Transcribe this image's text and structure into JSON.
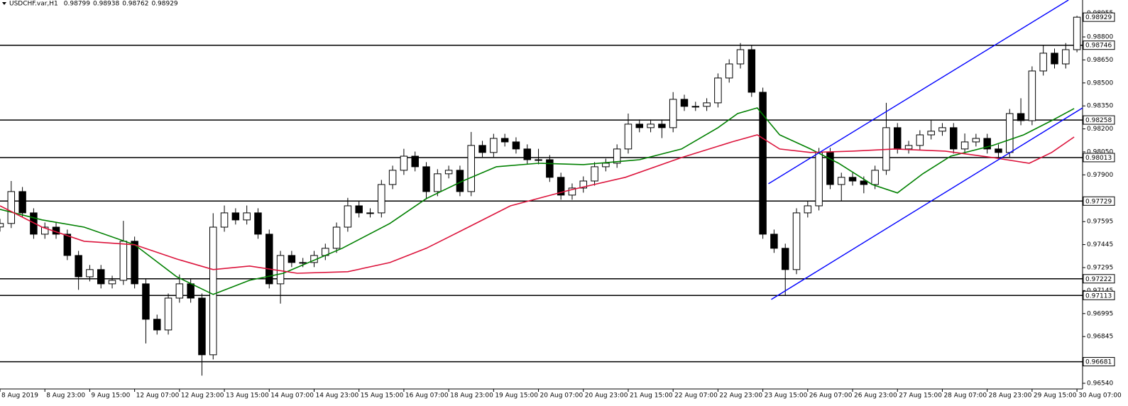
{
  "chart_data": {
    "type": "candlestick",
    "title": "USDCHF.var,H1",
    "header_ohlc": [
      0.98799,
      0.98938,
      0.98762,
      0.98929
    ],
    "xlim": [
      0,
      386
    ],
    "ylim": [
      0.96503,
      0.99041
    ],
    "x": [
      0,
      4,
      8,
      12,
      16,
      20,
      24,
      28,
      32,
      36,
      40,
      44,
      48,
      52,
      56,
      60,
      64,
      68,
      72,
      76,
      80,
      84,
      88,
      92,
      96,
      100,
      104,
      108,
      112,
      116,
      120,
      124,
      128,
      132,
      136,
      140,
      144,
      148,
      152,
      156,
      160,
      164,
      168,
      172,
      176,
      180,
      184,
      188,
      192,
      196,
      200,
      204,
      208,
      212,
      216,
      220,
      224,
      228,
      232,
      236,
      240,
      244,
      248,
      252,
      256,
      260,
      264,
      268,
      272,
      276,
      280,
      284,
      288,
      292,
      296,
      300,
      304,
      308,
      312,
      316,
      320,
      324,
      328,
      332,
      336,
      340,
      344,
      348,
      352,
      356,
      360,
      364,
      368,
      372,
      376,
      380,
      384
    ],
    "open": [
      0.9756,
      0.97583,
      0.97791,
      0.97652,
      0.97513,
      0.97559,
      0.97513,
      0.97374,
      0.97235,
      0.97282,
      0.97189,
      0.97212,
      0.97467,
      0.97189,
      0.96958,
      0.96888,
      0.97096,
      0.97189,
      0.97096,
      0.96726,
      0.97559,
      0.97652,
      0.97606,
      0.97652,
      0.97513,
      0.97189,
      0.97374,
      0.97328,
      0.97328,
      0.97374,
      0.97421,
      0.97559,
      0.97698,
      0.97652,
      0.97652,
      0.97837,
      0.9793,
      0.98022,
      0.97953,
      0.97791,
      0.97907,
      0.9793,
      0.97791,
      0.98092,
      0.98046,
      0.98138,
      0.98115,
      0.98069,
      0.97999,
      0.97999,
      0.97884,
      0.97768,
      0.97814,
      0.9786,
      0.97953,
      0.97976,
      0.98069,
      0.98231,
      0.98208,
      0.98231,
      0.98208,
      0.98393,
      0.98347,
      0.98347,
      0.9837,
      0.98532,
      0.98624,
      0.98717,
      0.98439,
      0.97513,
      0.97421,
      0.97282,
      0.97652,
      0.97698,
      0.98046,
      0.97837,
      0.97884,
      0.9786,
      0.97837,
      0.9793,
      0.98208,
      0.98069,
      0.98092,
      0.98161,
      0.98185,
      0.98208,
      0.98069,
      0.98115,
      0.98138,
      0.98069,
      0.98046,
      0.983,
      0.98254,
      0.98578,
      0.98694,
      0.98624,
      0.98717
    ],
    "high": [
      0.97613,
      0.9786,
      0.97821,
      0.97682,
      0.97589,
      0.97589,
      0.97543,
      0.97404,
      0.97312,
      0.97312,
      0.97242,
      0.976,
      0.97497,
      0.97219,
      0.96988,
      0.97126,
      0.9725,
      0.97219,
      0.97126,
      0.9765,
      0.977,
      0.97682,
      0.977,
      0.97682,
      0.97543,
      0.97404,
      0.97404,
      0.97358,
      0.97404,
      0.97451,
      0.97589,
      0.9775,
      0.97728,
      0.97682,
      0.97867,
      0.9796,
      0.9807,
      0.98052,
      0.97983,
      0.97937,
      0.9796,
      0.9796,
      0.9818,
      0.98122,
      0.98168,
      0.98168,
      0.98145,
      0.98099,
      0.9807,
      0.98029,
      0.97914,
      0.97844,
      0.9789,
      0.97983,
      0.98006,
      0.98099,
      0.983,
      0.98261,
      0.98261,
      0.98261,
      0.9844,
      0.98423,
      0.98377,
      0.984,
      0.98562,
      0.98654,
      0.9876,
      0.98747,
      0.98469,
      0.97543,
      0.97451,
      0.97682,
      0.97728,
      0.98076,
      0.98076,
      0.97914,
      0.97914,
      0.9789,
      0.9796,
      0.9837,
      0.98238,
      0.98122,
      0.98191,
      0.98258,
      0.98238,
      0.98238,
      0.9817,
      0.98168,
      0.98168,
      0.98099,
      0.9833,
      0.984,
      0.98608,
      0.98746,
      0.98724,
      0.9876,
      0.98938
    ],
    "low": [
      0.9753,
      0.97553,
      0.97622,
      0.97483,
      0.97483,
      0.97483,
      0.97344,
      0.9715,
      0.97205,
      0.97159,
      0.97159,
      0.97182,
      0.97159,
      0.968,
      0.96858,
      0.96858,
      0.97066,
      0.97066,
      0.9659,
      0.96696,
      0.97529,
      0.97576,
      0.97576,
      0.97483,
      0.97159,
      0.9706,
      0.97298,
      0.97298,
      0.97298,
      0.97344,
      0.97391,
      0.97529,
      0.97622,
      0.97622,
      0.97622,
      0.97807,
      0.979,
      0.97923,
      0.9774,
      0.97761,
      0.97877,
      0.97761,
      0.97761,
      0.98016,
      0.98016,
      0.98085,
      0.98039,
      0.97969,
      0.97969,
      0.97854,
      0.97738,
      0.97738,
      0.97784,
      0.9783,
      0.97923,
      0.97946,
      0.98039,
      0.98178,
      0.98178,
      0.9814,
      0.98178,
      0.98317,
      0.98317,
      0.98317,
      0.9834,
      0.98502,
      0.98594,
      0.98409,
      0.97483,
      0.97391,
      0.97113,
      0.97252,
      0.97622,
      0.97668,
      0.97807,
      0.97729,
      0.9783,
      0.9778,
      0.97807,
      0.979,
      0.98039,
      0.98039,
      0.98062,
      0.98131,
      0.98155,
      0.98039,
      0.98039,
      0.98085,
      0.98039,
      0.98013,
      0.98016,
      0.98224,
      0.98224,
      0.98548,
      0.98594,
      0.98594,
      0.987
    ],
    "close": [
      0.97583,
      0.97791,
      0.97652,
      0.97513,
      0.97559,
      0.97513,
      0.97374,
      0.97235,
      0.97282,
      0.97189,
      0.97212,
      0.97467,
      0.97189,
      0.96958,
      0.96888,
      0.97096,
      0.97189,
      0.97096,
      0.96726,
      0.97559,
      0.97652,
      0.97606,
      0.97652,
      0.97513,
      0.97189,
      0.97374,
      0.97328,
      0.97328,
      0.97374,
      0.97421,
      0.97559,
      0.97698,
      0.97652,
      0.97652,
      0.97837,
      0.9793,
      0.98022,
      0.97953,
      0.97791,
      0.97907,
      0.9793,
      0.97791,
      0.98092,
      0.98046,
      0.98138,
      0.98115,
      0.98069,
      0.97999,
      0.97999,
      0.97884,
      0.97768,
      0.97814,
      0.9786,
      0.97953,
      0.97976,
      0.98069,
      0.98231,
      0.98208,
      0.98231,
      0.98208,
      0.98393,
      0.98347,
      0.98347,
      0.9837,
      0.98532,
      0.98624,
      0.98717,
      0.98439,
      0.97513,
      0.97421,
      0.97282,
      0.97652,
      0.97698,
      0.98046,
      0.97837,
      0.97884,
      0.9786,
      0.97837,
      0.9793,
      0.98208,
      0.98069,
      0.98092,
      0.98161,
      0.98185,
      0.98208,
      0.98069,
      0.98115,
      0.98138,
      0.98069,
      0.98046,
      0.983,
      0.98254,
      0.98578,
      0.98694,
      0.98624,
      0.98717,
      0.98929
    ],
    "up_color": "#ffffff",
    "down_color": "#000000",
    "xticks": [
      {
        "value": 0,
        "label": "8 Aug 2019"
      },
      {
        "value": 16,
        "label": "8 Aug 23:00"
      },
      {
        "value": 32,
        "label": "9 Aug 15:00"
      },
      {
        "value": 48,
        "label": "12 Aug 07:00"
      },
      {
        "value": 64,
        "label": "12 Aug 23:00"
      },
      {
        "value": 80,
        "label": "13 Aug 15:00"
      },
      {
        "value": 96,
        "label": "14 Aug 07:00"
      },
      {
        "value": 112,
        "label": "14 Aug 23:00"
      },
      {
        "value": 128,
        "label": "15 Aug 15:00"
      },
      {
        "value": 144,
        "label": "16 Aug 07:00"
      },
      {
        "value": 160,
        "label": "18 Aug 23:00"
      },
      {
        "value": 176,
        "label": "19 Aug 15:00"
      },
      {
        "value": 192,
        "label": "20 Aug 07:00"
      },
      {
        "value": 208,
        "label": "20 Aug 23:00"
      },
      {
        "value": 224,
        "label": "21 Aug 15:00"
      },
      {
        "value": 240,
        "label": "22 Aug 07:00"
      },
      {
        "value": 256,
        "label": "22 Aug 23:00"
      },
      {
        "value": 272,
        "label": "23 Aug 15:00"
      },
      {
        "value": 288,
        "label": "26 Aug 07:00"
      },
      {
        "value": 304,
        "label": "26 Aug 23:00"
      },
      {
        "value": 320,
        "label": "27 Aug 15:00"
      },
      {
        "value": 336,
        "label": "28 Aug 07:00"
      },
      {
        "value": 352,
        "label": "28 Aug 23:00"
      },
      {
        "value": 368,
        "label": "29 Aug 15:00"
      },
      {
        "value": 384,
        "label": "30 Aug 07:00"
      }
    ],
    "yticks": [
      0.98955,
      {
        "value": 0.988,
        "label": "0.98800"
      },
      {
        "value": 0.9865,
        "label": "0.98650"
      },
      {
        "value": 0.985,
        "label": "0.98500"
      },
      {
        "value": 0.9835,
        "label": "0.98350"
      },
      {
        "value": 0.982,
        "label": "0.98200"
      },
      {
        "value": 0.9805,
        "label": "0.98050"
      },
      {
        "value": 0.979,
        "label": "0.97900"
      },
      0.97595,
      0.97445,
      0.97295,
      0.97145,
      0.96995,
      0.96845,
      {
        "value": 0.9654,
        "label": "0.96540"
      }
    ],
    "levels": [
      0.98746,
      0.98258,
      0.98013,
      0.97729,
      0.97222,
      0.97113,
      0.96681
    ],
    "last_price": 0.98929,
    "moving_averages": [
      {
        "color": "#008000",
        "x": [
          0,
          15,
          30,
          48,
          63,
          76,
          89,
          101,
          122,
          139,
          152,
          165,
          177,
          192,
          208,
          228,
          243,
          256,
          263,
          270,
          278,
          289,
          299,
          311,
          320,
          329,
          339,
          354,
          365,
          375,
          383
        ],
        "values": [
          0.97675,
          0.97606,
          0.97559,
          0.97444,
          0.97235,
          0.9712,
          0.97212,
          0.97258,
          0.97421,
          0.97583,
          0.97745,
          0.9786,
          0.97953,
          0.97976,
          0.97967,
          0.97999,
          0.98069,
          0.98208,
          0.983,
          0.98337,
          0.98161,
          0.98069,
          0.97976,
          0.97837,
          0.97782,
          0.97907,
          0.98022,
          0.98092,
          0.98161,
          0.98254,
          0.98333
        ]
      },
      {
        "color": "#dc143c",
        "x": [
          0,
          15,
          30,
          48,
          63,
          76,
          89,
          106,
          124,
          139,
          152,
          167,
          182,
          203,
          223,
          243,
          261,
          270,
          278,
          289,
          304,
          319,
          337,
          354,
          367,
          375,
          383
        ],
        "values": [
          0.97698,
          0.97559,
          0.97467,
          0.97444,
          0.97351,
          0.97282,
          0.97305,
          0.97258,
          0.97268,
          0.97328,
          0.97421,
          0.97559,
          0.97698,
          0.978,
          0.97884,
          0.98013,
          0.98115,
          0.98161,
          0.98069,
          0.98046,
          0.98055,
          0.98069,
          0.98055,
          0.98013,
          0.97976,
          0.98046,
          0.98147
        ]
      }
    ],
    "trendlines": [
      {
        "color": "#0000ff",
        "x": [
          274,
          381
        ],
        "values": [
          0.97842,
          0.99041
        ]
      },
      {
        "color": "#0000ff",
        "x": [
          275,
          386
        ],
        "values": [
          0.97087,
          0.98337
        ]
      }
    ]
  }
}
